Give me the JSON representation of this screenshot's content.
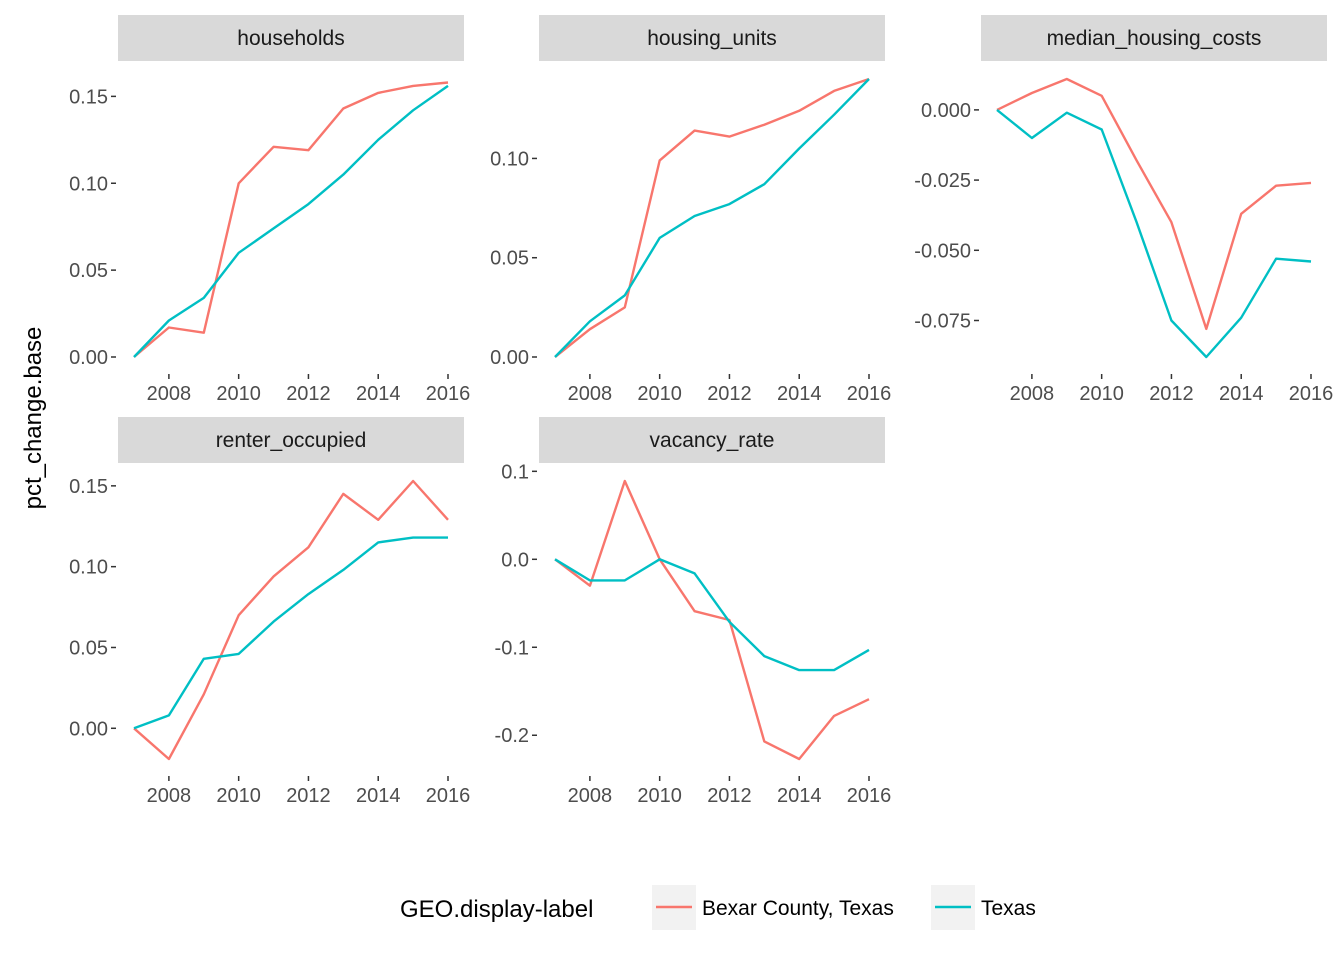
{
  "chart_data": {
    "type": "line",
    "ylabel": "pct_change.base",
    "legend": {
      "title": "GEO.display-label",
      "position": "bottom",
      "entries": [
        "Bexar County, Texas",
        "Texas"
      ]
    },
    "colors": {
      "Bexar County, Texas": "#F8766D",
      "Texas": "#00BFC4",
      "strip_bg": "#D9D9D9",
      "legend_key_bg": "#F2F2F2"
    },
    "grid": false,
    "x": [
      2007,
      2008,
      2009,
      2010,
      2011,
      2012,
      2013,
      2014,
      2015,
      2016
    ],
    "x_ticks": [
      2008,
      2010,
      2012,
      2014,
      2016
    ],
    "panels": [
      {
        "title": "households",
        "xlim": [
          2007,
          2016
        ],
        "ylim": [
          0,
          0.16
        ],
        "y_ticks": [
          0,
          0.05,
          0.1,
          0.15
        ],
        "y_tick_labels": [
          "0.00",
          "0.05",
          "0.10",
          "0.15"
        ],
        "series": [
          {
            "name": "Bexar County, Texas",
            "values": [
              0.0,
              0.017,
              0.014,
              0.1,
              0.121,
              0.119,
              0.143,
              0.152,
              0.156,
              0.158
            ]
          },
          {
            "name": "Texas",
            "values": [
              0.0,
              0.021,
              0.034,
              0.06,
              0.074,
              0.088,
              0.105,
              0.125,
              0.142,
              0.156
            ]
          }
        ]
      },
      {
        "title": "housing_units",
        "xlim": [
          2007,
          2016
        ],
        "ylim": [
          0,
          0.14
        ],
        "y_ticks": [
          0,
          0.05,
          0.1
        ],
        "y_tick_labels": [
          "0.00",
          "0.05",
          "0.10"
        ],
        "series": [
          {
            "name": "Bexar County, Texas",
            "values": [
              0.0,
              0.014,
              0.025,
              0.099,
              0.114,
              0.111,
              0.117,
              0.124,
              0.134,
              0.14
            ]
          },
          {
            "name": "Texas",
            "values": [
              0.0,
              0.018,
              0.031,
              0.06,
              0.071,
              0.077,
              0.087,
              0.105,
              0.122,
              0.14
            ]
          }
        ]
      },
      {
        "title": "median_housing_costs",
        "xlim": [
          2007,
          2016
        ],
        "ylim": [
          -0.088,
          0.011
        ],
        "y_ticks": [
          0,
          -0.025,
          -0.05,
          -0.075
        ],
        "y_tick_labels": [
          "0.000",
          "-0.025",
          "-0.050",
          "-0.075"
        ],
        "series": [
          {
            "name": "Bexar County, Texas",
            "values": [
              0.0,
              0.006,
              0.011,
              0.005,
              -0.018,
              -0.04,
              -0.078,
              -0.037,
              -0.027,
              -0.026
            ]
          },
          {
            "name": "Texas",
            "values": [
              0.0,
              -0.01,
              -0.001,
              -0.007,
              -0.04,
              -0.075,
              -0.088,
              -0.074,
              -0.053,
              -0.054
            ]
          }
        ]
      },
      {
        "title": "renter_occupied",
        "xlim": [
          2007,
          2016
        ],
        "ylim": [
          -0.019,
          0.153
        ],
        "y_ticks": [
          0,
          0.05,
          0.1,
          0.15
        ],
        "y_tick_labels": [
          "0.00",
          "0.05",
          "0.10",
          "0.15"
        ],
        "series": [
          {
            "name": "Bexar County, Texas",
            "values": [
              0.0,
              -0.019,
              0.021,
              0.07,
              0.094,
              0.112,
              0.145,
              0.129,
              0.153,
              0.129
            ]
          },
          {
            "name": "Texas",
            "values": [
              0.0,
              0.008,
              0.043,
              0.046,
              0.066,
              0.083,
              0.098,
              0.115,
              0.118,
              0.118
            ]
          }
        ]
      },
      {
        "title": "vacancy_rate",
        "xlim": [
          2007,
          2016
        ],
        "ylim": [
          -0.227,
          0.089
        ],
        "y_ticks": [
          0.1,
          0,
          -0.1,
          -0.2
        ],
        "y_tick_labels": [
          "0.1",
          "0.0",
          "-0.1",
          "-0.2"
        ],
        "series": [
          {
            "name": "Bexar County, Texas",
            "values": [
              0.0,
              -0.03,
              0.089,
              0.0,
              -0.059,
              -0.069,
              -0.207,
              -0.227,
              -0.178,
              -0.159
            ]
          },
          {
            "name": "Texas",
            "values": [
              0.0,
              -0.024,
              -0.024,
              0.0,
              -0.016,
              -0.071,
              -0.11,
              -0.126,
              -0.126,
              -0.103
            ]
          }
        ]
      }
    ]
  }
}
